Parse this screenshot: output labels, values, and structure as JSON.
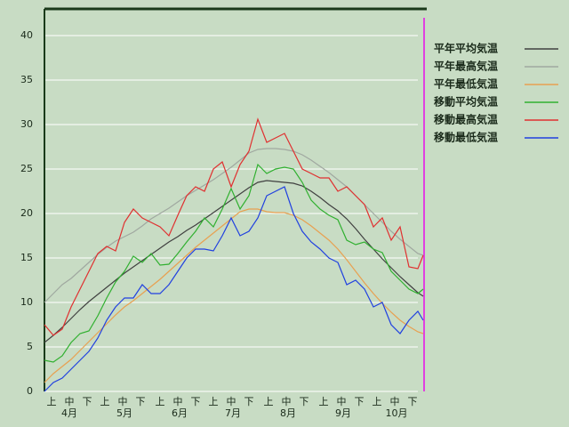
{
  "chart_data": {
    "type": "line",
    "x": [
      0,
      5,
      10,
      15,
      20,
      25,
      30,
      35,
      40,
      45,
      50,
      55,
      60,
      65,
      70,
      75,
      80,
      85,
      90,
      95,
      100,
      105,
      110,
      115,
      120,
      125,
      130,
      135,
      140,
      145,
      150,
      155,
      160,
      165,
      170,
      175,
      180,
      185,
      190,
      195,
      200,
      205,
      210,
      213
    ],
    "xlim": [
      0,
      213
    ],
    "xticks": [
      {
        "value": 4,
        "label": "上"
      },
      {
        "value": 14,
        "label": "中"
      },
      {
        "value": 24,
        "label": "下"
      },
      {
        "value": 34,
        "label": "上"
      },
      {
        "value": 44,
        "label": "中"
      },
      {
        "value": 54,
        "label": "下"
      },
      {
        "value": 65,
        "label": "上"
      },
      {
        "value": 75,
        "label": "中"
      },
      {
        "value": 85,
        "label": "下"
      },
      {
        "value": 95,
        "label": "上"
      },
      {
        "value": 105,
        "label": "中"
      },
      {
        "value": 115,
        "label": "下"
      },
      {
        "value": 126,
        "label": "上"
      },
      {
        "value": 136,
        "label": "中"
      },
      {
        "value": 146,
        "label": "下"
      },
      {
        "value": 157,
        "label": "上"
      },
      {
        "value": 167,
        "label": "中"
      },
      {
        "value": 177,
        "label": "下"
      },
      {
        "value": 187,
        "label": "上"
      },
      {
        "value": 197,
        "label": "中"
      },
      {
        "value": 207,
        "label": "下"
      }
    ],
    "month_ticks": [
      {
        "value": 14,
        "label": "4月"
      },
      {
        "value": 45,
        "label": "5月"
      },
      {
        "value": 76,
        "label": "6月"
      },
      {
        "value": 106,
        "label": "7月"
      },
      {
        "value": 137,
        "label": "8月"
      },
      {
        "value": 168,
        "label": "9月"
      },
      {
        "value": 198,
        "label": "10月"
      }
    ],
    "ylim": [
      0,
      43
    ],
    "yticks": [
      0,
      5,
      10,
      15,
      20,
      25,
      30,
      35,
      40
    ],
    "grid": true,
    "series": [
      {
        "name": "平年平均気温",
        "color": "#404040",
        "values": [
          5.5,
          6.3,
          7.2,
          8.2,
          9.2,
          10.1,
          10.9,
          11.7,
          12.5,
          13.3,
          14.0,
          14.7,
          15.4,
          16.1,
          16.8,
          17.4,
          18.1,
          18.7,
          19.4,
          20.1,
          20.8,
          21.5,
          22.2,
          22.9,
          23.5,
          23.7,
          23.6,
          23.5,
          23.4,
          23.1,
          22.5,
          21.8,
          21.0,
          20.3,
          19.4,
          18.3,
          17.1,
          16.0,
          14.9,
          13.9,
          12.9,
          12.0,
          11.1,
          10.7
        ]
      },
      {
        "name": "平年最高気温",
        "color": "#a0a8a0",
        "values": [
          10,
          11,
          12,
          12.7,
          13.6,
          14.5,
          15.4,
          16.2,
          16.9,
          17.4,
          17.9,
          18.6,
          19.4,
          20.0,
          20.6,
          21.3,
          22.0,
          22.6,
          23.2,
          23.8,
          24.5,
          25.2,
          26.0,
          26.8,
          27.2,
          27.3,
          27.3,
          27.2,
          27.0,
          26.6,
          26.0,
          25.3,
          24.6,
          23.8,
          23.0,
          22.0,
          21.0,
          20.0,
          19.0,
          18.0,
          17.1,
          16.3,
          15.5,
          15.3
        ]
      },
      {
        "name": "平年最低気温",
        "color": "#e8a050",
        "values": [
          1,
          2,
          2.8,
          3.6,
          4.6,
          5.6,
          6.6,
          7.6,
          8.6,
          9.5,
          10.2,
          11.0,
          11.8,
          12.6,
          13.5,
          14.4,
          15.3,
          16.2,
          17.0,
          17.8,
          18.6,
          19.4,
          20.2,
          20.5,
          20.5,
          20.2,
          20.1,
          20.1,
          19.8,
          19.3,
          18.6,
          17.8,
          17.0,
          16.0,
          14.8,
          13.5,
          12.2,
          11.0,
          9.9,
          8.9,
          8.0,
          7.3,
          6.7,
          6.5
        ]
      },
      {
        "name": "移動平均気温",
        "color": "#30b030",
        "values": [
          3.5,
          3.3,
          4,
          5.5,
          6.5,
          6.8,
          8.5,
          10.5,
          12.3,
          13.5,
          15.2,
          14.5,
          15.5,
          14.2,
          14.3,
          15.5,
          16.8,
          18,
          19.5,
          18.5,
          20.5,
          22.8,
          20.5,
          22,
          25.5,
          24.5,
          25,
          25.2,
          25,
          23.5,
          21.5,
          20.5,
          19.8,
          19.3,
          17,
          16.5,
          16.8,
          16,
          15.6,
          13.5,
          12.5,
          11.5,
          11,
          11.5
        ]
      },
      {
        "name": "移動最高気温",
        "color": "#e03030",
        "values": [
          7.5,
          6.3,
          7,
          9.5,
          11.5,
          13.5,
          15.5,
          16.3,
          15.8,
          19,
          20.5,
          19.5,
          19,
          18.5,
          17.5,
          19.8,
          22,
          23,
          22.5,
          25,
          25.8,
          23,
          25.5,
          27,
          30.6,
          28,
          28.5,
          29,
          27,
          25,
          24.5,
          24,
          24,
          22.5,
          23,
          22,
          21,
          18.5,
          19.5,
          17,
          18.5,
          14,
          13.8,
          15.3
        ]
      },
      {
        "name": "移動最低気温",
        "color": "#2040e0",
        "values": [
          0,
          1,
          1.5,
          2.5,
          3.5,
          4.5,
          6,
          8,
          9.5,
          10.5,
          10.5,
          12,
          11,
          11,
          12,
          13.5,
          15,
          16,
          16,
          15.8,
          17.5,
          19.5,
          17.5,
          18,
          19.5,
          22,
          22.5,
          23,
          20,
          18,
          16.8,
          16,
          15,
          14.5,
          12,
          12.5,
          11.5,
          9.5,
          10,
          7.5,
          6.5,
          8,
          9,
          8
        ]
      }
    ]
  }
}
